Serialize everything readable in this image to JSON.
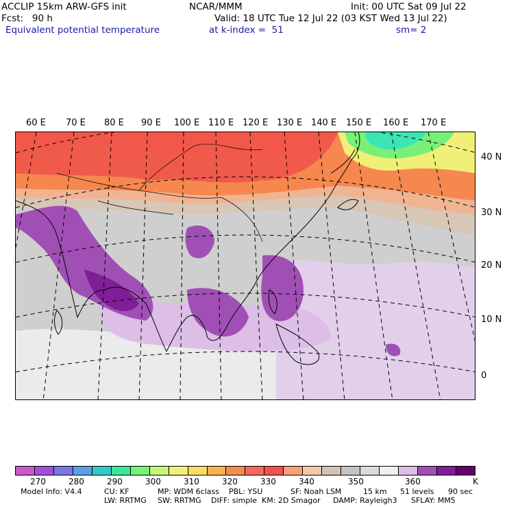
{
  "header": {
    "model": "ACCLIP 15km ARW-GFS init",
    "org": "NCAR/MMM",
    "init": "Init: 00 UTC Sat 09 Jul 22",
    "fcst": "Fcst:   90 h",
    "valid": "Valid: 18 UTC Tue 12 Jul 22 (03 KST Wed 13 Jul 22)",
    "field": "Equivalent potential temperature",
    "level": "at k-index =  51",
    "smooth": "sm= 2"
  },
  "lon_labels": [
    "60 E",
    "70 E",
    "80 E",
    "90 E",
    "100 E",
    "110 E",
    "120 E",
    "130 E",
    "140 E",
    "150 E",
    "160 E",
    "170 E"
  ],
  "lat_labels": [
    "40 N",
    "30 N",
    "20 N",
    "10 N",
    "0"
  ],
  "colorbar": {
    "colors": [
      "#c85ac8",
      "#a050d8",
      "#7878e6",
      "#5aa0e6",
      "#32c8c8",
      "#3ce696",
      "#78f078",
      "#c8f578",
      "#f0f078",
      "#fadc64",
      "#f5b450",
      "#f58c50",
      "#f5695a",
      "#f05050",
      "#f5a078",
      "#f0c8aa",
      "#d2c3b4",
      "#c3c3c3",
      "#dcdcdc",
      "#f0f0f0",
      "#dcbee6",
      "#a050b4",
      "#7f1e96",
      "#64006e"
    ],
    "labels": [
      "270",
      "280",
      "290",
      "300",
      "310",
      "320",
      "330",
      "340",
      "350",
      "360"
    ],
    "unit": "K"
  },
  "footer": {
    "line1": [
      "Model Info: V4.4",
      "CU: KF",
      "MP: WDM 6class",
      "PBL: YSU",
      "SF: Noah LSM",
      "15 km",
      "51 levels",
      "90 sec"
    ],
    "line2": [
      "LW: RRTMG",
      "SW: RRTMG",
      "DIFF: simple",
      "KM: 2D Smagor",
      "DAMP: Rayleigh3",
      "SFLAY: MM5"
    ]
  },
  "map": {
    "colors": {
      "bg": "#cfcfcf",
      "hot_red": "#f05a4b",
      "orange": "#f5874f",
      "salmon": "#f0b493",
      "tan": "#d2c3b4",
      "grey": "#c3c3c3",
      "light": "#ebebeb",
      "lilac": "#dcbee6",
      "purple": "#a050b4",
      "dark": "#7f1e96",
      "cold_green": "#5af096",
      "teal": "#3ce6b4",
      "yellow": "#f0f078"
    }
  }
}
